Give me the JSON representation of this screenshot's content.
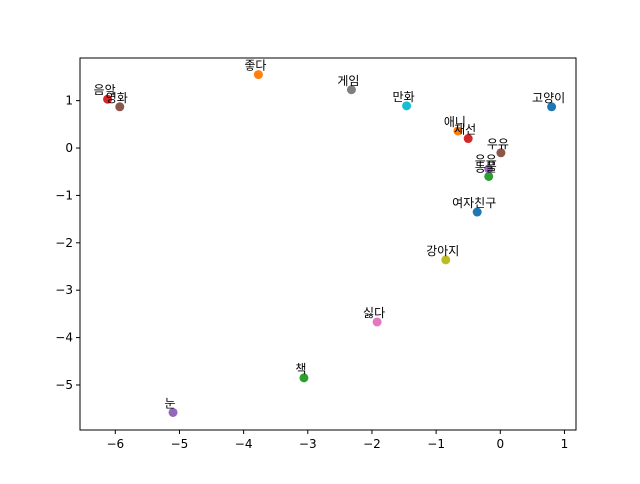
{
  "chart_data": {
    "type": "scatter",
    "title": "",
    "xlabel": "",
    "ylabel": "",
    "xlim": [
      -6.55,
      1.18
    ],
    "ylim": [
      -5.95,
      1.9
    ],
    "xticks": [
      -6,
      -5,
      -4,
      -3,
      -2,
      -1,
      0,
      1
    ],
    "yticks": [
      -5,
      -4,
      -3,
      -2,
      -1,
      0,
      1
    ],
    "grid": false,
    "points": [
      {
        "label": "고양이",
        "x": 0.8,
        "y": 0.87,
        "color": "#1f77b4"
      },
      {
        "label": "좋다",
        "x": -3.77,
        "y": 1.55,
        "color": "#ff7f0e"
      },
      {
        "label": "동물",
        "x": -0.18,
        "y": -0.6,
        "color": "#2ca02c"
      },
      {
        "label": "음악",
        "x": -6.12,
        "y": 1.03,
        "color": "#d62728"
      },
      {
        "label": "눈",
        "x": -5.1,
        "y": -5.58,
        "color": "#9467bd"
      },
      {
        "label": "영화",
        "x": -5.93,
        "y": 0.87,
        "color": "#8c564b"
      },
      {
        "label": "싫다",
        "x": -1.92,
        "y": -3.67,
        "color": "#e377c2"
      },
      {
        "label": "게임",
        "x": -2.32,
        "y": 1.23,
        "color": "#7f7f7f"
      },
      {
        "label": "강아지",
        "x": -0.85,
        "y": -2.36,
        "color": "#bcbd22"
      },
      {
        "label": "만화",
        "x": -1.46,
        "y": 0.89,
        "color": "#17becf"
      },
      {
        "label": "여자친구",
        "x": -0.36,
        "y": -1.35,
        "color": "#1f77b4"
      },
      {
        "label": "애니",
        "x": -0.66,
        "y": 0.36,
        "color": "#ff7f0e"
      },
      {
        "label": "책",
        "x": -3.06,
        "y": -4.85,
        "color": "#2ca02c"
      },
      {
        "label": "재선",
        "x": -0.5,
        "y": 0.2,
        "color": "#d62728"
      },
      {
        "label": "우유",
        "x": -0.18,
        "y": -0.44,
        "color": "#9467bd"
      },
      {
        "label": "우유",
        "x": 0.01,
        "y": -0.1,
        "color": "#8c564b"
      }
    ]
  }
}
